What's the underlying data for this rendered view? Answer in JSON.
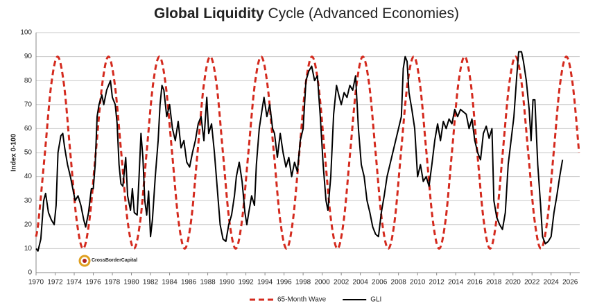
{
  "chart_data": {
    "type": "line",
    "title": [
      "Global Liquidity",
      "Cycle (Advanced Economies)"
    ],
    "y_label": "Index 0-100",
    "logo": "CrossBorderCapital",
    "xlim": [
      1970,
      2027
    ],
    "xticks": [
      1970,
      1972,
      1974,
      1976,
      1978,
      1980,
      1982,
      1984,
      1986,
      1988,
      1990,
      1992,
      1994,
      1996,
      1998,
      2000,
      2002,
      2004,
      2006,
      2008,
      2010,
      2012,
      2014,
      2016,
      2018,
      2020,
      2022,
      2024,
      2026
    ],
    "ylim": [
      0,
      100
    ],
    "yticks": [
      0,
      10,
      20,
      30,
      40,
      50,
      60,
      70,
      80,
      90,
      100
    ],
    "grid": true,
    "legend": "bottom",
    "series": [
      {
        "name": "65-Month Wave",
        "color": "#d42a1e",
        "dashed": true,
        "x": [
          1970.0,
          1970.26,
          1970.93,
          1971.59,
          1972.26,
          1972.93,
          1973.59,
          1974.26,
          1974.93,
          1975.59,
          1976.26,
          1976.93,
          1977.59,
          1978.26,
          1978.93,
          1979.59,
          1980.26,
          1980.93,
          1981.59,
          1982.26,
          1982.93,
          1983.59,
          1984.26,
          1984.93,
          1985.59,
          1986.26,
          1986.93,
          1987.59,
          1988.26,
          1988.93,
          1989.59,
          1990.26,
          1990.93,
          1991.59,
          1992.26,
          1992.93,
          1993.6,
          1994.26,
          1994.93,
          1995.6,
          1996.26,
          1996.93,
          1997.6,
          1998.26,
          1998.93,
          1999.6,
          2000.26,
          2000.93,
          2001.6,
          2002.26,
          2002.93,
          2003.6,
          2004.26,
          2004.93,
          2005.6,
          2006.26,
          2006.93,
          2007.6,
          2008.26,
          2008.93,
          2009.6,
          2010.26,
          2010.93,
          2011.6,
          2012.26,
          2012.93,
          2013.6,
          2014.26,
          2014.93,
          2015.6,
          2016.26,
          2016.93,
          2017.6,
          2018.26,
          2018.93,
          2019.6,
          2020.27,
          2020.93,
          2021.6,
          2022.27,
          2022.93,
          2023.6,
          2024.27,
          2024.93,
          2025.6,
          2026.27,
          2026.93
        ],
        "values": [
          15,
          21.7,
          50,
          78.3,
          90,
          78.3,
          50,
          21.7,
          10,
          21.7,
          50,
          78.3,
          90,
          78.3,
          50,
          21.7,
          10,
          21.7,
          50,
          78.3,
          90,
          78.3,
          50,
          21.7,
          10,
          21.7,
          50,
          78.3,
          90,
          78.3,
          50,
          21.7,
          10,
          21.7,
          50,
          78.3,
          90,
          78.3,
          50,
          21.7,
          10,
          21.7,
          50,
          78.3,
          90,
          78.3,
          50,
          21.7,
          10,
          21.7,
          50,
          78.3,
          90,
          78.3,
          50,
          21.7,
          10,
          21.7,
          50,
          78.3,
          90,
          78.3,
          50,
          21.7,
          10,
          21.7,
          50,
          78.3,
          90,
          78.3,
          50,
          21.7,
          10,
          21.7,
          50,
          78.3,
          90,
          78.3,
          50,
          21.7,
          10,
          21.7,
          50,
          78.3,
          90,
          78.3,
          50
        ]
      },
      {
        "name": "GLI",
        "color": "#000000",
        "dashed": false,
        "x": [
          1970.0,
          1970.2,
          1970.5,
          1970.8,
          1971.0,
          1971.3,
          1971.6,
          1971.9,
          1972.1,
          1972.3,
          1972.6,
          1972.8,
          1973.0,
          1973.3,
          1973.6,
          1973.9,
          1974.1,
          1974.4,
          1974.7,
          1975.0,
          1975.2,
          1975.5,
          1975.8,
          1976.0,
          1976.2,
          1976.4,
          1976.6,
          1976.9,
          1977.1,
          1977.4,
          1977.6,
          1977.8,
          1978.0,
          1978.3,
          1978.5,
          1978.7,
          1978.9,
          1979.1,
          1979.4,
          1979.6,
          1979.9,
          1980.1,
          1980.3,
          1980.6,
          1980.8,
          1981.0,
          1981.2,
          1981.4,
          1981.6,
          1981.8,
          1982.0,
          1982.2,
          1982.5,
          1982.8,
          1983.0,
          1983.2,
          1983.4,
          1983.7,
          1984.0,
          1984.3,
          1984.6,
          1984.9,
          1985.2,
          1985.5,
          1985.8,
          1986.1,
          1986.4,
          1986.7,
          1987.0,
          1987.3,
          1987.6,
          1987.9,
          1988.1,
          1988.4,
          1988.7,
          1989.0,
          1989.3,
          1989.6,
          1989.9,
          1990.2,
          1990.5,
          1990.8,
          1991.0,
          1991.3,
          1991.6,
          1991.9,
          1992.1,
          1992.3,
          1992.6,
          1992.9,
          1993.1,
          1993.4,
          1993.7,
          1993.9,
          1994.2,
          1994.5,
          1994.8,
          1995.0,
          1995.3,
          1995.6,
          1995.9,
          1996.2,
          1996.5,
          1996.8,
          1997.1,
          1997.4,
          1997.7,
          1998.0,
          1998.3,
          1998.6,
          1998.9,
          1999.2,
          1999.5,
          1999.8,
          2000.1,
          2000.4,
          2000.6,
          2000.9,
          2001.2,
          2001.5,
          2001.8,
          2002.0,
          2002.3,
          2002.6,
          2002.9,
          2003.2,
          2003.5,
          2003.8,
          2004.1,
          2004.4,
          2004.7,
          2005.0,
          2005.3,
          2005.6,
          2005.9,
          2006.2,
          2006.5,
          2006.8,
          2007.1,
          2007.4,
          2007.7,
          2008.0,
          2008.3,
          2008.5,
          2008.7,
          2008.9,
          2009.1,
          2009.4,
          2009.7,
          2010.0,
          2010.3,
          2010.6,
          2010.9,
          2011.2,
          2011.5,
          2011.8,
          2012.1,
          2012.4,
          2012.7,
          2013.0,
          2013.3,
          2013.6,
          2013.9,
          2014.2,
          2014.5,
          2014.8,
          2015.1,
          2015.4,
          2015.7,
          2016.0,
          2016.3,
          2016.6,
          2016.9,
          2017.2,
          2017.5,
          2017.8,
          2018.0,
          2018.3,
          2018.6,
          2018.9,
          2019.2,
          2019.5,
          2019.8,
          2020.1,
          2020.4,
          2020.6,
          2020.9,
          2021.1,
          2021.4,
          2021.7,
          2021.9,
          2022.1,
          2022.3,
          2022.6,
          2022.9,
          2023.1,
          2023.4,
          2023.7,
          2024.0,
          2024.3,
          2024.6,
          2024.9,
          2025.2
        ],
        "values": [
          10,
          9,
          14,
          30,
          33,
          25,
          22,
          20,
          28,
          50,
          57,
          58,
          52,
          45,
          40,
          34,
          30,
          32,
          28,
          22,
          19,
          25,
          35,
          35,
          45,
          65,
          70,
          74,
          70,
          76,
          78,
          80,
          73,
          70,
          62,
          45,
          37,
          36,
          48,
          32,
          26,
          35,
          25,
          24,
          40,
          58,
          48,
          30,
          24,
          34,
          15,
          22,
          40,
          55,
          70,
          78,
          76,
          65,
          70,
          60,
          55,
          63,
          52,
          55,
          46,
          44,
          50,
          55,
          62,
          65,
          55,
          73,
          58,
          62,
          50,
          35,
          20,
          14,
          13,
          20,
          24,
          32,
          40,
          46,
          38,
          25,
          20,
          25,
          32,
          28,
          45,
          60,
          68,
          73,
          65,
          70,
          60,
          58,
          48,
          58,
          50,
          44,
          48,
          40,
          46,
          42,
          55,
          60,
          80,
          84,
          86,
          80,
          82,
          65,
          45,
          30,
          26,
          40,
          66,
          78,
          73,
          70,
          75,
          73,
          78,
          76,
          82,
          60,
          45,
          40,
          30,
          25,
          19,
          16,
          15,
          25,
          32,
          40,
          45,
          50,
          55,
          60,
          65,
          85,
          90,
          88,
          75,
          68,
          60,
          40,
          45,
          38,
          40,
          36,
          45,
          55,
          62,
          55,
          63,
          60,
          64,
          62,
          68,
          65,
          68,
          67,
          66,
          60,
          64,
          55,
          50,
          47,
          58,
          61,
          56,
          60,
          30,
          23,
          20,
          18,
          25,
          45,
          55,
          65,
          82,
          92,
          92,
          88,
          80,
          68,
          55,
          72,
          72,
          45,
          28,
          15,
          12,
          13,
          15,
          25,
          32,
          40,
          47
        ]
      }
    ]
  }
}
